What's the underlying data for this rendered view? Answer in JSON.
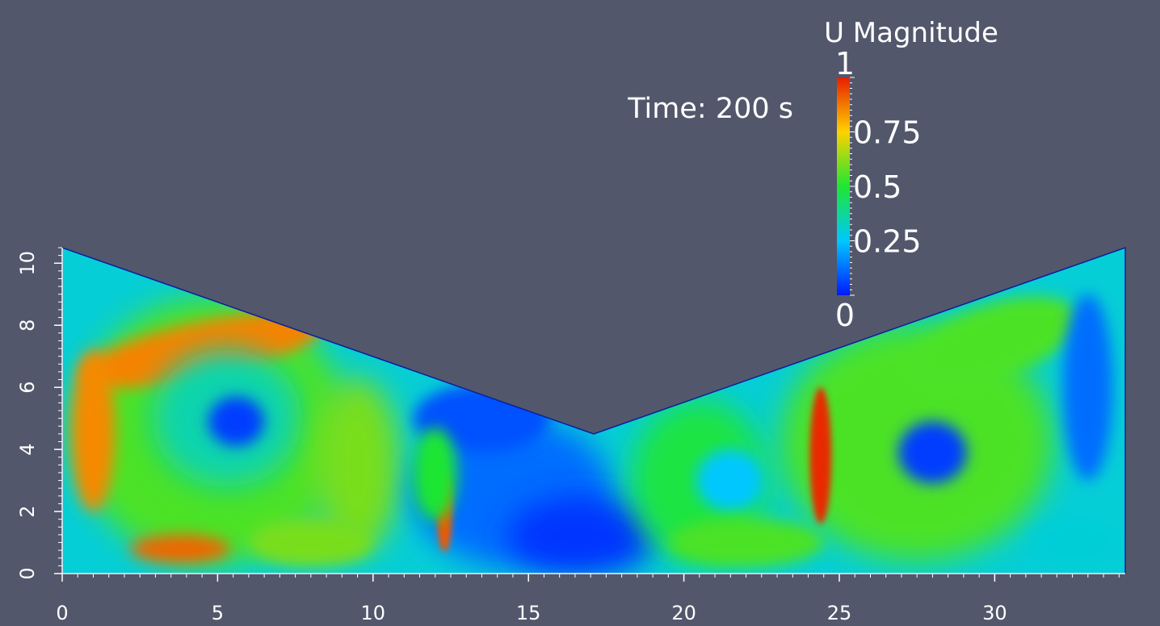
{
  "chart_data": {
    "type": "heatmap",
    "field_name": "U Magnitude",
    "time_label": "Time: 200 s",
    "background_color": "#52576b",
    "colormap": [
      "#0019ff",
      "#00c8ff",
      "#1ee632",
      "#ffd200",
      "#e61e00"
    ],
    "colorbar": {
      "min": 0,
      "max": 1,
      "tick_labels": [
        "1",
        "0.75",
        "0.5",
        "0.25",
        "0"
      ],
      "tick_values": [
        1,
        0.75,
        0.5,
        0.25,
        0
      ]
    },
    "x_axis": {
      "range": [
        0,
        34.2
      ],
      "ticks": [
        0,
        5,
        10,
        15,
        20,
        25,
        30
      ],
      "tick_labels": [
        "0",
        "5",
        "10",
        "15",
        "20",
        "25",
        "30"
      ],
      "minor_step": 0.5
    },
    "y_axis": {
      "range": [
        0,
        10.5
      ],
      "ticks": [
        0,
        2,
        4,
        6,
        8,
        10
      ],
      "tick_labels": [
        "0",
        "2",
        "4",
        "6",
        "8",
        "10"
      ],
      "minor_step": 0.25
    },
    "domain_outline": [
      [
        0,
        0
      ],
      [
        0,
        10.5
      ],
      [
        17.1,
        4.5
      ],
      [
        34.2,
        10.5
      ],
      [
        34.2,
        0
      ]
    ],
    "flow_features": [
      {
        "label": "left vortex core",
        "x": 5.6,
        "y": 4.9,
        "value": 0.05
      },
      {
        "label": "right vortex core",
        "x": 28.0,
        "y": 3.9,
        "value": 0.05
      },
      {
        "label": "left vortex high-speed ring",
        "x": 4.5,
        "y": 7.3,
        "value": 0.88
      },
      {
        "label": "jet near x=24.4",
        "x": 24.4,
        "y": 4.2,
        "value": 0.98
      },
      {
        "label": "small jet near x=12.3",
        "x": 12.3,
        "y": 2.0,
        "value": 0.9
      }
    ]
  }
}
